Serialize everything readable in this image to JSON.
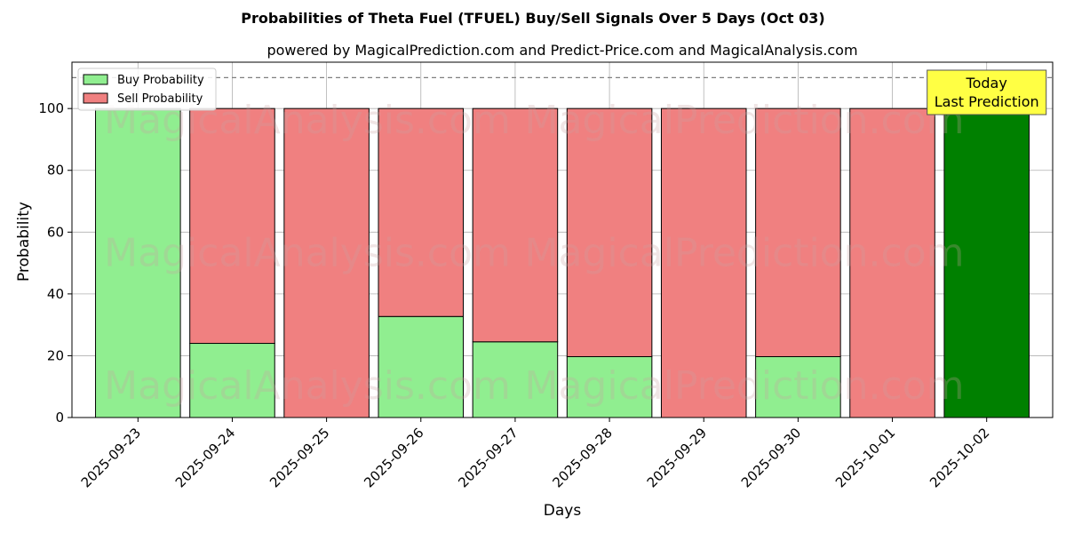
{
  "chart_data": {
    "type": "bar",
    "stacked": true,
    "title": "Probabilities of Theta Fuel (TFUEL) Buy/Sell Signals Over 5 Days (Oct 03)",
    "subtitle": "powered by MagicalPrediction.com and Predict-Price.com and MagicalAnalysis.com",
    "xlabel": "Days",
    "ylabel": "Probability",
    "ylim": [
      0,
      115
    ],
    "yticks": [
      0,
      20,
      40,
      60,
      80,
      100
    ],
    "reference_line": 110,
    "grid": true,
    "legend_position": "top-left",
    "categories": [
      "2025-09-23",
      "2025-09-24",
      "2025-09-25",
      "2025-09-26",
      "2025-09-27",
      "2025-09-28",
      "2025-09-29",
      "2025-09-30",
      "2025-10-01",
      "2025-10-02"
    ],
    "series": [
      {
        "name": "Buy Probability",
        "color": "#90ee90",
        "values": [
          100,
          24,
          0,
          32.7,
          24.5,
          19.7,
          0,
          19.7,
          0,
          100
        ]
      },
      {
        "name": "Sell Probability",
        "color": "#f08080",
        "values": [
          0,
          76,
          100,
          67.3,
          75.5,
          80.3,
          100,
          80.3,
          100,
          0
        ]
      }
    ],
    "highlight": {
      "index": 9,
      "color": "#008000"
    },
    "annotation": {
      "lines": [
        "Today",
        "Last Prediction"
      ],
      "box_color": "#ffff44"
    },
    "watermarks": [
      "MagicalAnalysis.com",
      "MagicalPrediction.com"
    ]
  }
}
